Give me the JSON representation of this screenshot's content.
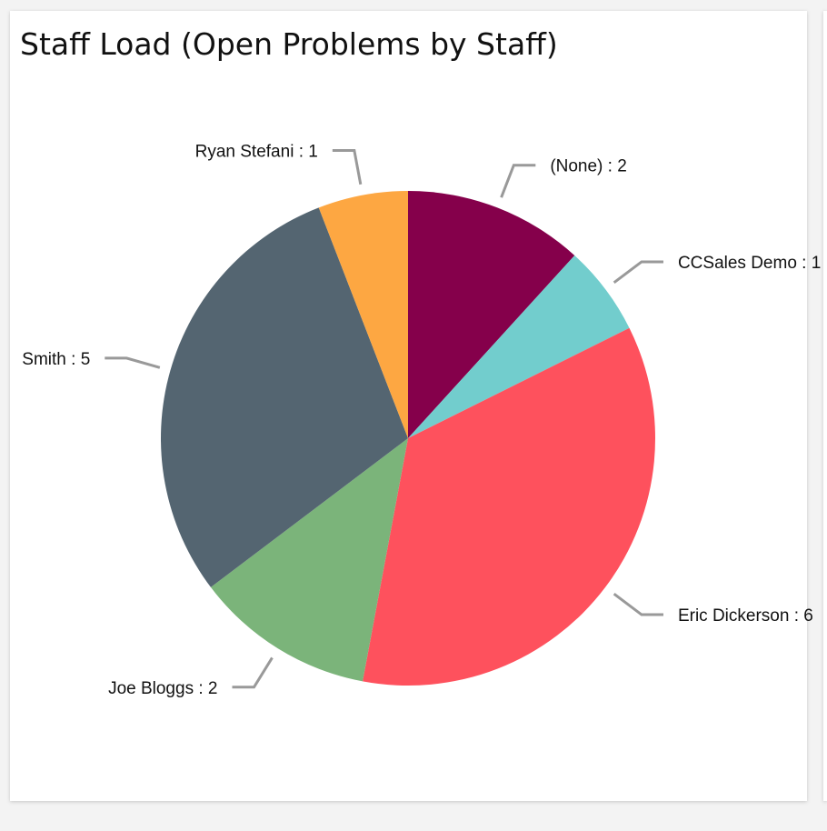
{
  "chart_data": {
    "type": "pie",
    "title": "Staff Load (Open Problems by Staff)",
    "slices": [
      {
        "label": "(None)",
        "value": 2,
        "color": "#85004b"
      },
      {
        "label": "CCSales Demo",
        "value": 1,
        "color": "#72cdcd"
      },
      {
        "label": "Eric Dickerson",
        "value": 6,
        "color": "#fe515d"
      },
      {
        "label": "Joe Bloggs",
        "value": 2,
        "color": "#7bb47a"
      },
      {
        "label": "Smith",
        "value": 5,
        "color": "#546571"
      },
      {
        "label": "Ryan Stefani",
        "value": 1,
        "color": "#fda742"
      }
    ],
    "label_format": "{label} : {value}",
    "legend": "none"
  }
}
